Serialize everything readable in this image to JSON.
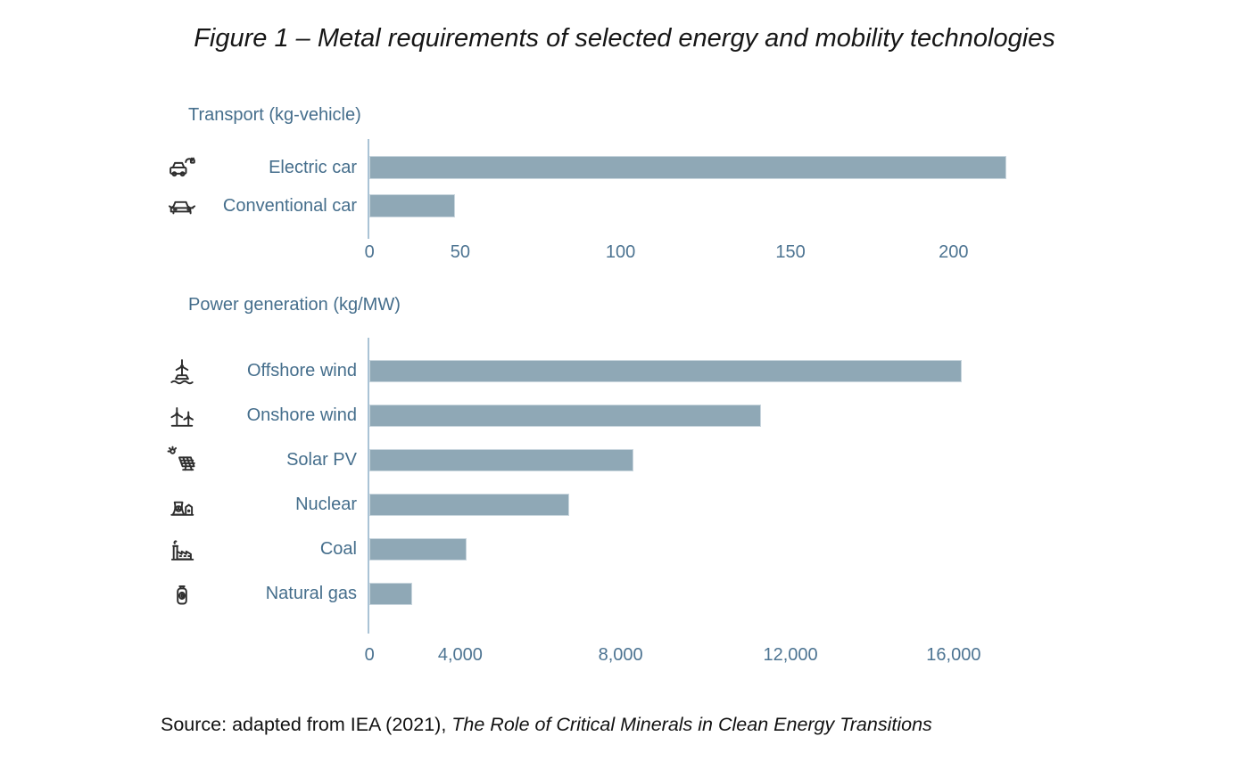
{
  "title": "Figure 1 – Metal requirements of selected energy and mobility technologies",
  "source": {
    "prefix": "Source: adapted from IEA (2021), ",
    "work": "The Role of Critical Minerals in Clean Energy Transitions"
  },
  "colors": {
    "bar_fill": "#8FA8B6",
    "bar_border": "#C9D6DE",
    "axis_line": "#AAC3D5",
    "chart_text": "#456E8C",
    "tick_text": "#4D7492",
    "title_text": "#161616",
    "source_text": "#111111",
    "icon_stroke": "#2E2E2E"
  },
  "chart_data": [
    {
      "type": "bar",
      "orientation": "horizontal",
      "title": "Transport (kg-vehicle)",
      "unit": "kg-vehicle",
      "categories": [
        "Electric car",
        "Conventional car"
      ],
      "values": [
        215,
        47
      ],
      "icons": [
        "electric-car-icon",
        "conventional-car-icon"
      ],
      "xtick_labels": [
        "0",
        "50",
        "100",
        "150",
        "200"
      ],
      "xtick_values": [
        0,
        50,
        100,
        150,
        200
      ],
      "xtick_pos_pct": [
        0.15,
        13.4,
        36.8,
        61.6,
        85.4
      ],
      "bar_pct": [
        93.0,
        12.5
      ],
      "grid": false,
      "legend": false
    },
    {
      "type": "bar",
      "orientation": "horizontal",
      "title": "Power generation (kg/MW)",
      "unit": "kg/MW",
      "categories": [
        "Offshore wind",
        "Onshore wind",
        "Solar PV",
        "Nuclear",
        "Coal",
        "Natural gas"
      ],
      "values": [
        16100,
        11300,
        8200,
        6600,
        4100,
        1800
      ],
      "icons": [
        "offshore-wind-icon",
        "onshore-wind-icon",
        "solar-pv-icon",
        "nuclear-icon",
        "coal-icon",
        "natural-gas-icon"
      ],
      "xtick_labels": [
        "0",
        "4,000",
        "8,000",
        "12,000",
        "16,000"
      ],
      "xtick_values": [
        0,
        4000,
        8000,
        12000,
        16000
      ],
      "xtick_pos_pct": [
        0.15,
        13.4,
        36.8,
        61.6,
        85.4
      ],
      "bar_pct": [
        86.5,
        57.2,
        38.5,
        29.2,
        14.2,
        6.3
      ],
      "grid": false,
      "legend": false
    }
  ]
}
